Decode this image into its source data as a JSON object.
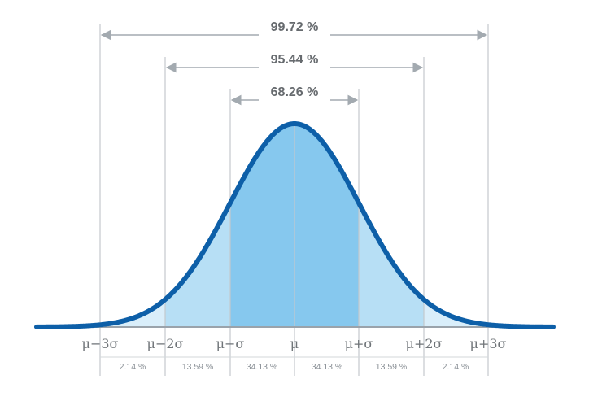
{
  "diagram": {
    "coverage_labels": [
      "99.72 %",
      "95.44 %",
      "68.26 %"
    ],
    "axis_labels": [
      "μ−3σ",
      "μ−2σ",
      "μ−σ",
      "μ",
      "μ+σ",
      "μ+2σ",
      "μ+3σ"
    ],
    "band_labels": [
      "2.14 %",
      "13.59 %",
      "34.13 %",
      "34.13 %",
      "13.59 %",
      "2.14 %"
    ],
    "colors": {
      "curve": "#0d5fa8",
      "band_1sigma": "#86c8ee",
      "band_2sigma": "#b7dff5",
      "band_3sigma": "#d9eefa",
      "guide": "#c4c9cd",
      "baseline": "#9aa3ab"
    }
  }
}
